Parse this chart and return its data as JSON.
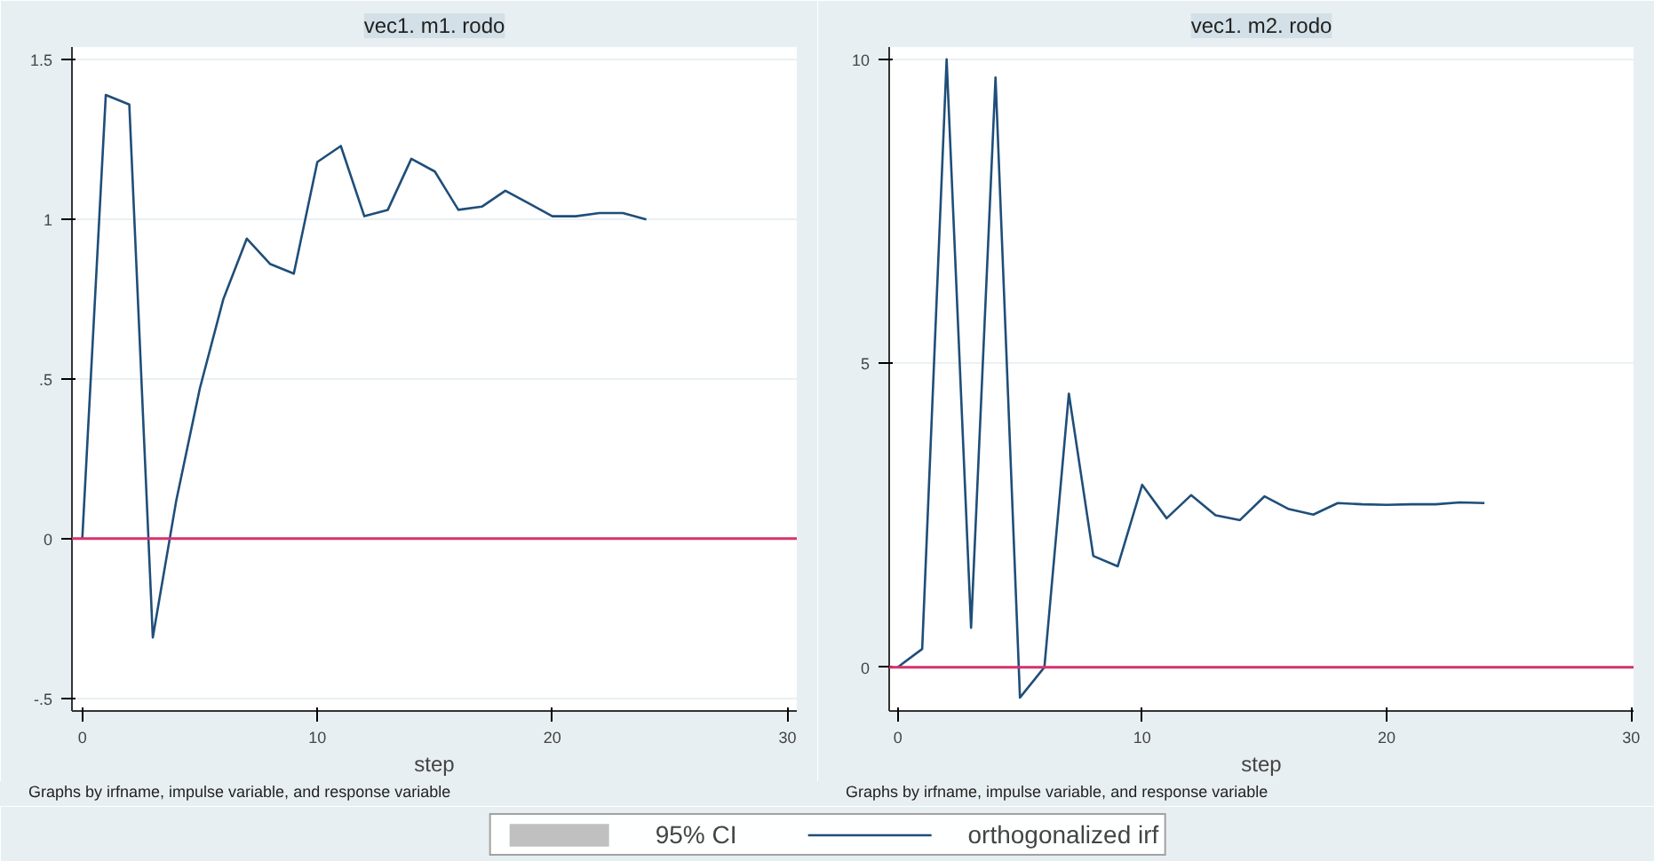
{
  "chart_data": [
    {
      "type": "line",
      "title": "vec1. m1. rodo",
      "xlabel": "step",
      "x": [
        0,
        1,
        2,
        3,
        4,
        5,
        6,
        7,
        8,
        9,
        10,
        11,
        12,
        13,
        14,
        15,
        16,
        17,
        18,
        19,
        20,
        21,
        22,
        23,
        24
      ],
      "series": [
        {
          "name": "95% CI",
          "type": "area",
          "color": "#c0c0c0",
          "values": [
            null,
            null,
            null,
            null,
            null,
            null,
            null,
            null,
            null,
            null,
            null,
            null,
            null,
            null,
            null,
            null,
            null,
            null,
            null,
            null,
            null,
            null,
            null,
            null,
            null
          ]
        },
        {
          "name": "orthogonalized irf",
          "color": "#1f4e79",
          "values": [
            0,
            1.39,
            1.36,
            -0.31,
            0.12,
            0.47,
            0.75,
            0.94,
            0.86,
            0.83,
            1.18,
            1.23,
            1.01,
            1.03,
            1.19,
            1.15,
            1.03,
            1.04,
            1.09,
            1.05,
            1.01,
            1.01,
            1.02,
            1.02,
            1.0
          ]
        }
      ],
      "xlim": [
        -0.44,
        30.4
      ],
      "ylim": [
        -0.54,
        1.54
      ],
      "xticks": [
        0,
        10,
        20,
        30
      ],
      "yticks": [
        {
          "value": -0.5,
          "label": "-.5"
        },
        0,
        {
          "value": 0.5,
          "label": ".5"
        },
        1,
        1.5
      ],
      "ref_lines": [
        {
          "axis": "y",
          "value": 0,
          "color": "#d6336c"
        }
      ],
      "grid": "y",
      "legend": "bottom",
      "line_style": "solid",
      "annotations": [
        "Graphs by irfname, impulse variable, and response variable"
      ]
    },
    {
      "type": "line",
      "title": "vec1. m2. rodo",
      "xlabel": "step",
      "x": [
        0,
        1,
        2,
        3,
        4,
        5,
        6,
        7,
        8,
        9,
        10,
        11,
        12,
        13,
        14,
        15,
        16,
        17,
        18,
        19,
        20,
        21,
        22,
        23,
        24
      ],
      "series": [
        {
          "color": "#1f4e79",
          "values": [
            0,
            0.3,
            10.0,
            0.65,
            9.7,
            -0.5,
            0,
            4.5,
            1.83,
            1.66,
            3.0,
            2.45,
            2.83,
            2.5,
            2.42,
            2.81,
            2.6,
            2.51,
            2.7,
            2.68,
            2.67,
            2.68,
            2.68,
            2.71,
            2.7
          ]
        }
      ],
      "xlim": [
        -0.35,
        30.1
      ],
      "ylim": [
        -0.72,
        10.2
      ],
      "xticks": [
        0,
        10,
        20,
        30
      ],
      "yticks": [
        0,
        5,
        10
      ],
      "ref_lines": [
        {
          "axis": "y",
          "value": 0,
          "color": "#d6336c"
        }
      ],
      "grid": "y",
      "line_style": "solid",
      "annotations": [
        "Graphs by irfname, impulse variable, and response variable"
      ]
    }
  ]
}
